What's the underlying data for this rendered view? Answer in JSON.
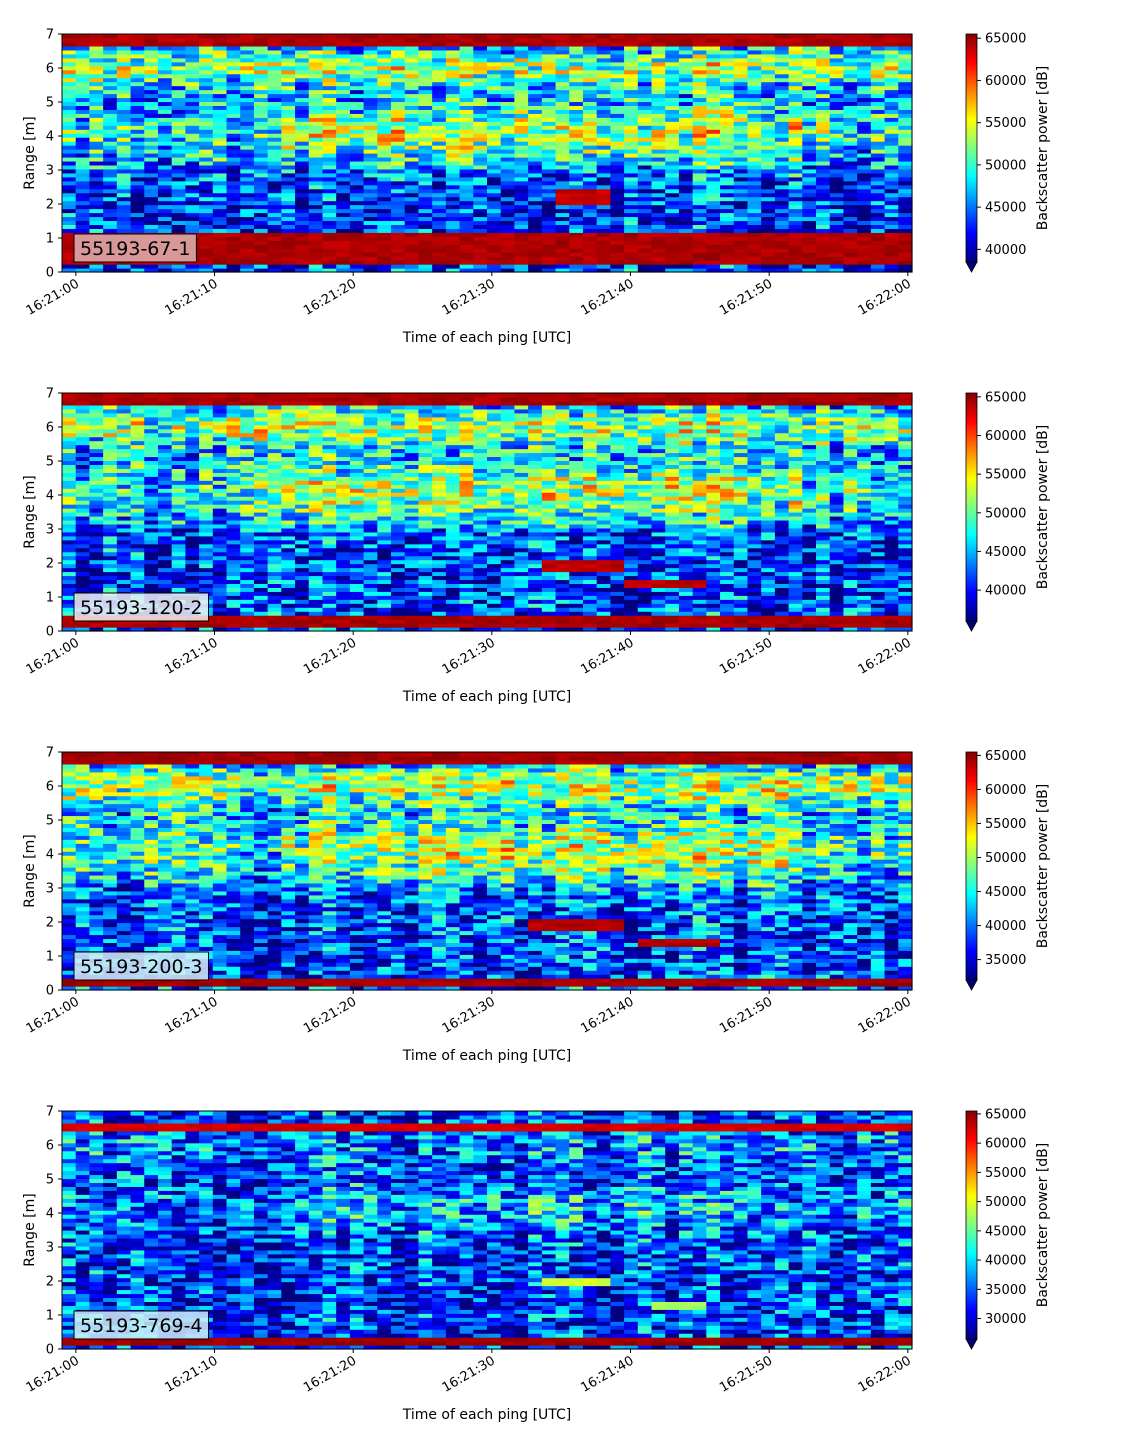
{
  "chart_data": [
    {
      "type": "heatmap",
      "label": "55193-67-1",
      "xlabel": "Time of each ping [UTC]",
      "ylabel": "Range [m]",
      "colorbar_label": "Backscatter power [dB]",
      "colorbar_ticks": [
        40000,
        45000,
        50000,
        55000,
        60000,
        65000
      ],
      "clim": [
        38500,
        65500
      ],
      "colormap": "jet",
      "colorbar_extend": "min",
      "x_tick_labels": [
        "16:21:00",
        "16:21:10",
        "16:21:20",
        "16:21:30",
        "16:21:40",
        "16:21:50",
        "16:22:00"
      ],
      "x_tick_seconds": [
        0,
        10,
        20,
        30,
        40,
        50,
        60
      ],
      "xlim_seconds": [
        -1,
        60.3
      ],
      "y_ticks": [
        0,
        1,
        2,
        3,
        4,
        5,
        6,
        7
      ],
      "ylim": [
        0,
        7
      ],
      "label_box_color": "#dfb3b3",
      "features": [
        {
          "name": "surface-band",
          "y_range": [
            0.2,
            1.15
          ],
          "value": 65000
        },
        {
          "name": "noise-band",
          "y_range": [
            6.7,
            7.0
          ],
          "value": 65000
        },
        {
          "name": "target",
          "t_range": [
            34.5,
            39
          ],
          "y_range": [
            2.0,
            2.4
          ],
          "value": 64500
        }
      ]
    },
    {
      "type": "heatmap",
      "label": "55193-120-2",
      "xlabel": "Time of each ping [UTC]",
      "ylabel": "Range [m]",
      "colorbar_label": "Backscatter power [dB]",
      "colorbar_ticks": [
        40000,
        45000,
        50000,
        55000,
        60000,
        65000
      ],
      "clim": [
        36000,
        65500
      ],
      "colormap": "jet",
      "colorbar_extend": "min",
      "x_tick_labels": [
        "16:21:00",
        "16:21:10",
        "16:21:20",
        "16:21:30",
        "16:21:40",
        "16:21:50",
        "16:22:00"
      ],
      "x_tick_seconds": [
        0,
        10,
        20,
        30,
        40,
        50,
        60
      ],
      "xlim_seconds": [
        -1,
        60.3
      ],
      "y_ticks": [
        0,
        1,
        2,
        3,
        4,
        5,
        6,
        7
      ],
      "ylim": [
        0,
        7
      ],
      "label_box_color": "#f2f2f2",
      "features": [
        {
          "name": "surface-band",
          "y_range": [
            0.1,
            0.5
          ],
          "value": 65000
        },
        {
          "name": "noise-band",
          "y_range": [
            6.6,
            7.0
          ],
          "value": 65000
        },
        {
          "name": "target-1",
          "t_range": [
            34,
            40
          ],
          "y_range": [
            1.8,
            2.1
          ],
          "value": 64500
        },
        {
          "name": "target-2",
          "t_range": [
            40,
            45.5
          ],
          "y_range": [
            1.3,
            1.5
          ],
          "value": 64500
        }
      ]
    },
    {
      "type": "heatmap",
      "label": "55193-200-3",
      "xlabel": "Time of each ping [UTC]",
      "ylabel": "Range [m]",
      "colorbar_label": "Backscatter power [dB]",
      "colorbar_ticks": [
        35000,
        40000,
        45000,
        50000,
        55000,
        60000,
        65000
      ],
      "clim": [
        32000,
        65500
      ],
      "colormap": "jet",
      "colorbar_extend": "min",
      "x_tick_labels": [
        "16:21:00",
        "16:21:10",
        "16:21:20",
        "16:21:30",
        "16:21:40",
        "16:21:50",
        "16:22:00"
      ],
      "x_tick_seconds": [
        0,
        10,
        20,
        30,
        40,
        50,
        60
      ],
      "xlim_seconds": [
        -1,
        60.3
      ],
      "y_ticks": [
        0,
        1,
        2,
        3,
        4,
        5,
        6,
        7
      ],
      "ylim": [
        0,
        7
      ],
      "label_box_color": "#d8f0f4",
      "features": [
        {
          "name": "surface-band",
          "y_range": [
            0.15,
            0.4
          ],
          "value": 65000
        },
        {
          "name": "noise-band",
          "y_range": [
            6.6,
            7.0
          ],
          "value": 65000
        },
        {
          "name": "target-1",
          "t_range": [
            32.5,
            40
          ],
          "y_range": [
            1.8,
            2.1
          ],
          "value": 64500
        },
        {
          "name": "target-2",
          "t_range": [
            41,
            46
          ],
          "y_range": [
            1.3,
            1.5
          ],
          "value": 64500
        }
      ]
    },
    {
      "type": "heatmap",
      "label": "55193-769-4",
      "xlabel": "Time of each ping [UTC]",
      "ylabel": "Range [m]",
      "colorbar_label": "Backscatter power [dB]",
      "colorbar_ticks": [
        30000,
        35000,
        40000,
        45000,
        50000,
        55000,
        60000,
        65000
      ],
      "clim": [
        26500,
        65500
      ],
      "colormap": "jet",
      "colorbar_extend": "min",
      "x_tick_labels": [
        "16:21:00",
        "16:21:10",
        "16:21:20",
        "16:21:30",
        "16:21:40",
        "16:21:50",
        "16:22:00"
      ],
      "x_tick_seconds": [
        0,
        10,
        20,
        30,
        40,
        50,
        60
      ],
      "xlim_seconds": [
        -1,
        60.3
      ],
      "y_ticks": [
        0,
        1,
        2,
        3,
        4,
        5,
        6,
        7
      ],
      "ylim": [
        0,
        7
      ],
      "label_box_color": "#d0f0f8",
      "features": [
        {
          "name": "surface-band",
          "y_range": [
            0.15,
            0.35
          ],
          "value": 65000
        },
        {
          "name": "surface-band-upper",
          "y_range": [
            6.4,
            6.7
          ],
          "value": 63000
        },
        {
          "name": "target-1",
          "t_range": [
            34,
            39
          ],
          "y_range": [
            1.85,
            2.05
          ],
          "value": 50000
        },
        {
          "name": "target-2",
          "t_range": [
            42,
            45
          ],
          "y_range": [
            1.2,
            1.4
          ],
          "value": 48000
        }
      ]
    }
  ]
}
